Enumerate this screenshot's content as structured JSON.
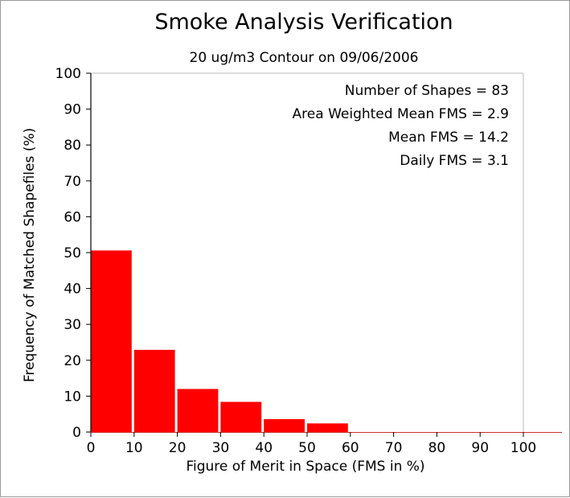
{
  "chart_data": {
    "type": "bar",
    "title": "Smoke Analysis Verification",
    "subtitle": "20 ug/m3 Contour on 09/06/2006",
    "xlabel": "Figure of Merit in Space (FMS in %)",
    "ylabel": "Frequency of Matched Shapefiles (%)",
    "xlim": [
      0,
      100
    ],
    "ylim": [
      0,
      100
    ],
    "x_ticks": [
      "0",
      "10",
      "20",
      "30",
      "40",
      "50",
      "60",
      "70",
      "80",
      "90",
      "100"
    ],
    "y_ticks": [
      "0",
      "10",
      "20",
      "30",
      "40",
      "50",
      "60",
      "70",
      "80",
      "90",
      "100"
    ],
    "bins": [
      {
        "start": 0,
        "end": 10,
        "value": 50.6
      },
      {
        "start": 10,
        "end": 20,
        "value": 22.9
      },
      {
        "start": 20,
        "end": 30,
        "value": 12.0
      },
      {
        "start": 30,
        "end": 40,
        "value": 8.4
      },
      {
        "start": 40,
        "end": 50,
        "value": 3.6
      },
      {
        "start": 50,
        "end": 60,
        "value": 2.4
      },
      {
        "start": 60,
        "end": 70,
        "value": 0
      },
      {
        "start": 70,
        "end": 80,
        "value": 0
      },
      {
        "start": 80,
        "end": 90,
        "value": 0
      },
      {
        "start": 90,
        "end": 100,
        "value": 0
      }
    ],
    "bar_color": "#ff0000",
    "grid": false,
    "annotations": [
      "Number of Shapes = 83",
      "Area Weighted Mean FMS = 2.9",
      "Mean FMS = 14.2",
      "Daily FMS = 3.1"
    ]
  }
}
